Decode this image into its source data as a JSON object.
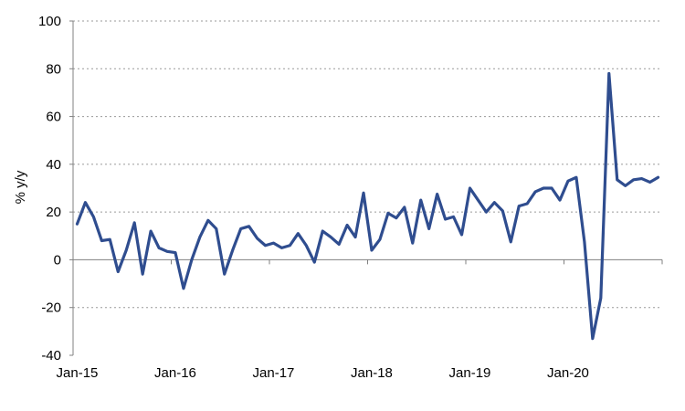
{
  "chart_data": {
    "type": "line",
    "title": "",
    "xlabel": "",
    "ylabel": "% y/y",
    "ylim": [
      -40,
      100
    ],
    "yticks": [
      -40,
      -20,
      0,
      20,
      40,
      60,
      80,
      100
    ],
    "xtick_labels": [
      "Jan-15",
      "Jan-16",
      "Jan-17",
      "Jan-18",
      "Jan-19",
      "Jan-20"
    ],
    "grid": "horizontal-dashed",
    "legend": "none",
    "line_color": "#2f4d8f",
    "x_start": "2015-01",
    "series": [
      {
        "name": "",
        "values": [
          15,
          24,
          18,
          8,
          8.5,
          -5,
          4,
          15.5,
          -6,
          12,
          5,
          3.5,
          3,
          -12,
          0,
          9.5,
          16.5,
          13,
          -6,
          4,
          13,
          14,
          9,
          6,
          7,
          5,
          6,
          11,
          6,
          -1,
          12,
          9.5,
          6.5,
          14.5,
          9.5,
          28,
          4,
          8.5,
          19.5,
          17.5,
          22,
          7,
          25,
          13,
          27.5,
          17,
          18,
          10.5,
          30,
          25,
          20,
          24,
          20.5,
          7.5,
          22.5,
          23.5,
          28.5,
          30,
          30,
          25,
          33,
          34.5,
          7.5,
          -33,
          -16,
          78,
          33.5,
          31,
          33.5,
          34,
          32.5,
          34.5
        ]
      }
    ]
  }
}
